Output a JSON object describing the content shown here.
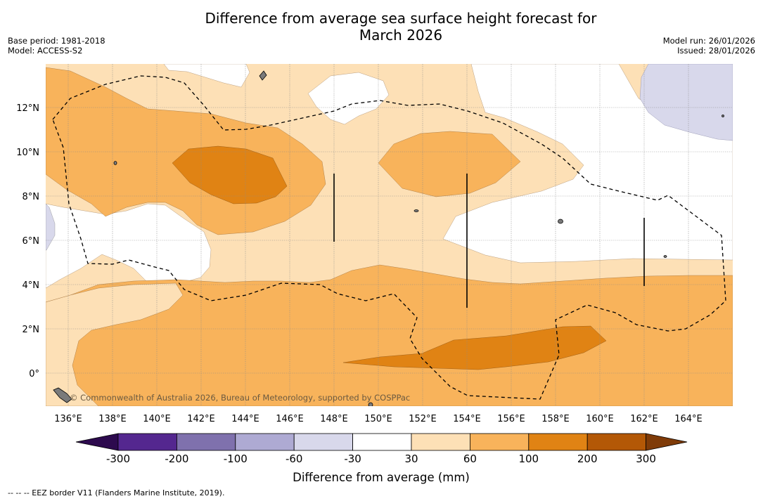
{
  "header": {
    "title_line1": "Difference from average sea surface height forecast for",
    "title_line2": "March 2026",
    "base_period": "Base period: 1981-2018",
    "model": "Model: ACCESS-S2",
    "model_run": "Model run: 26/01/2026",
    "issued": "Issued: 28/01/2026"
  },
  "map": {
    "lon_labels": [
      "136°E",
      "138°E",
      "140°E",
      "142°E",
      "144°E",
      "146°E",
      "148°E",
      "150°E",
      "152°E",
      "154°E",
      "156°E",
      "158°E",
      "160°E",
      "162°E",
      "164°E"
    ],
    "lat_labels": [
      "12°N",
      "10°N",
      "8°N",
      "6°N",
      "4°N",
      "2°N",
      "0°"
    ],
    "credit": "© Commonwealth of Australia 2026, Bureau of Meteorology, supported by COSPPac",
    "line_color": "#000000"
  },
  "legend": {
    "colors": {
      "below_-300": "#2d0a4e",
      "-300_-200": "#54278f",
      "-200_-100": "#7f71ad",
      "-100_-60": "#aeaad3",
      "-60_-30": "#d8d8eb",
      "-30_30": "#ffffff",
      "30_60": "#fde0b6",
      "60_100": "#f8b35b",
      "100_200": "#e08314",
      "200_300": "#b35806",
      "above_300": "#7f3b08"
    },
    "tick_labels": [
      "-300",
      "-200",
      "-100",
      "-60",
      "-30",
      "30",
      "60",
      "100",
      "200",
      "300"
    ],
    "axis_label": "Difference from average (mm)"
  },
  "footer": {
    "eez_note": "--  --  -- EEZ border V11 (Flanders Marine Institute, 2019)."
  }
}
